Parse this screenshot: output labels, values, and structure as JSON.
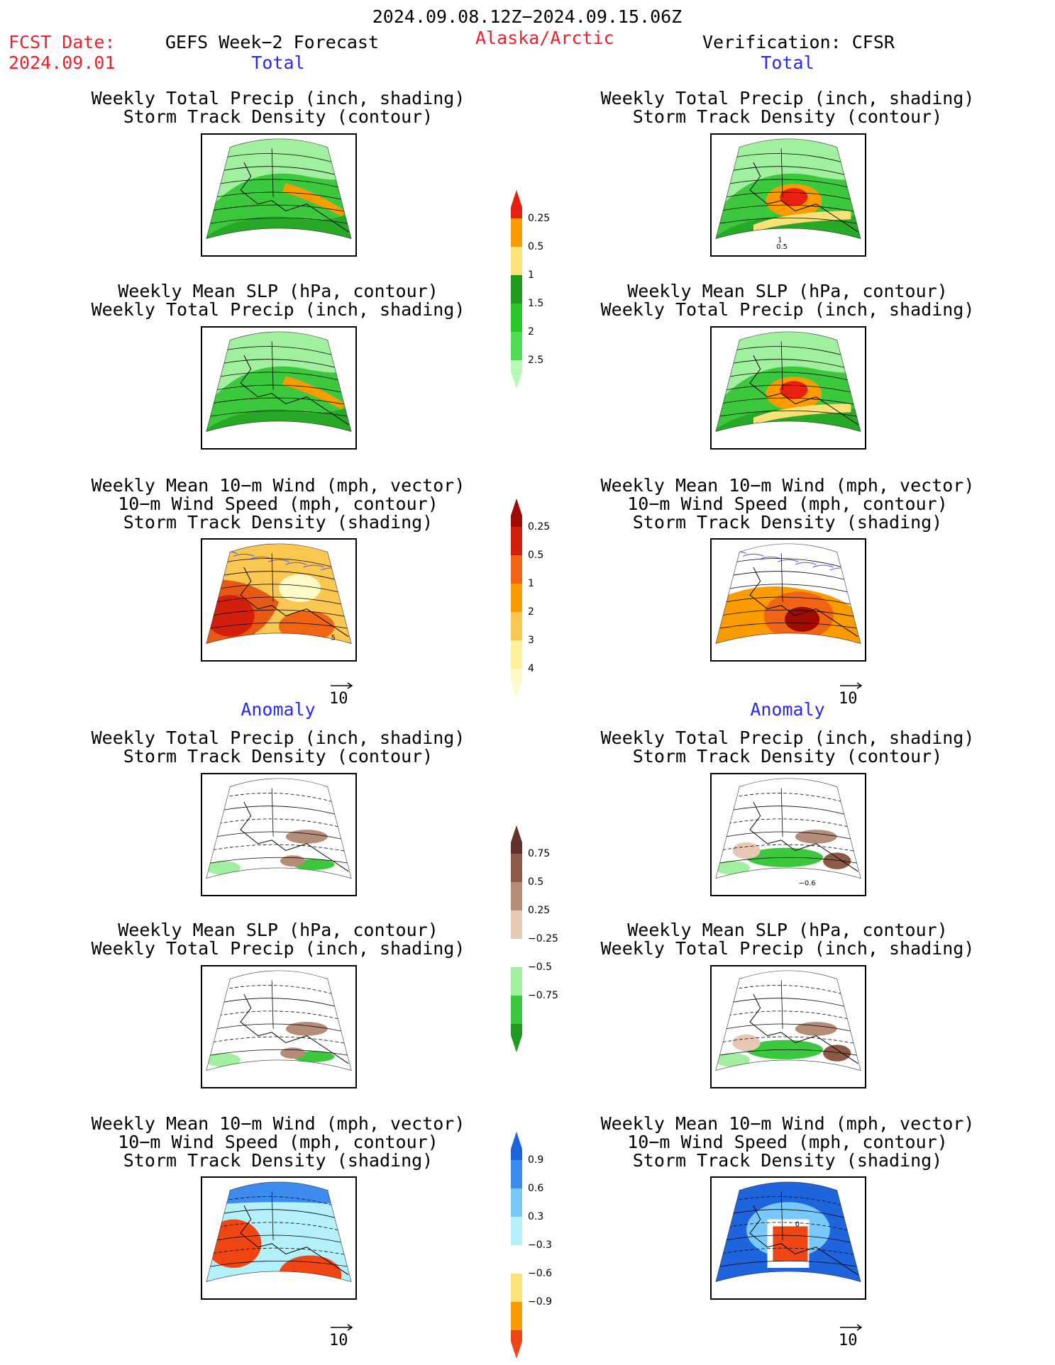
{
  "header": {
    "date_range": "2024.09.08.12Z−2024.09.15.06Z",
    "fcst_label": "FCST Date:",
    "fcst_value": "2024.09.01",
    "product": "GEFS Week−2 Forecast",
    "region": "Alaska/Arctic",
    "verification": "Verification: CFSR"
  },
  "sections": {
    "total_label": "Total",
    "anomaly_label": "Anomaly"
  },
  "panel_titles": {
    "precip_track": [
      "Weekly Total Precip (inch, shading)",
      "Storm Track Density (contour)"
    ],
    "slp_precip": [
      "Weekly Mean SLP (hPa, contour)",
      "Weekly Total Precip (inch, shading)"
    ],
    "wind_track": [
      "Weekly Mean 10−m Wind (mph, vector)",
      "10−m Wind Speed (mph, contour)",
      "Storm Track Density (shading)"
    ]
  },
  "reference_vector": "10",
  "colorbars": {
    "precip_total": {
      "labels": [
        "0.25",
        "0.5",
        "1",
        "1.5",
        "2",
        "2.5"
      ],
      "colors": [
        "#b4fab4",
        "#50dc50",
        "#28c828",
        "#1e9b1e",
        "#fae178",
        "#fa9b00",
        "#e82010"
      ]
    },
    "track_total": {
      "labels": [
        "0.25",
        "0.5",
        "1",
        "2",
        "3",
        "4"
      ],
      "colors": [
        "#fffac8",
        "#fff09b",
        "#fac850",
        "#fa9b00",
        "#f06414",
        "#d21e0a",
        "#a00a00"
      ]
    },
    "precip_anom": {
      "labels": [
        "0.75",
        "0.5",
        "0.25",
        "−0.25",
        "−0.5",
        "−0.75"
      ],
      "colors": [
        "#1e9b1e",
        "#3cc83c",
        "#a0f0a0",
        "#ffffff",
        "#e6c8b4",
        "#b48c78",
        "#8c5a46",
        "#643228"
      ]
    },
    "track_anom": {
      "labels": [
        "0.9",
        "0.6",
        "0.3",
        "−0.3",
        "−0.6",
        "−0.9"
      ],
      "colors": [
        "#f04614",
        "#fa9b00",
        "#fae178",
        "#ffffff",
        "#b4f0fa",
        "#78c8fa",
        "#3c8cf0",
        "#1e64dc"
      ]
    }
  },
  "map_annotations": {
    "fcst_wind_total": "5",
    "ver_precip_total": [
      "1",
      "0.5"
    ],
    "ver_precip_anom": "−0.6",
    "ver_wind_anom": "0"
  },
  "map_style": {
    "precip_fill": "#3cc83c",
    "precip_dark": "#1e9b1e",
    "precip_light": "#a0f0a0",
    "orange": "#fa9b00",
    "red": "#e82010",
    "dark_red": "#a00a00",
    "brown": "#b48c78",
    "blue": "#3c8cf0",
    "light_blue": "#b4f0fa",
    "vector": "#5050f0"
  }
}
